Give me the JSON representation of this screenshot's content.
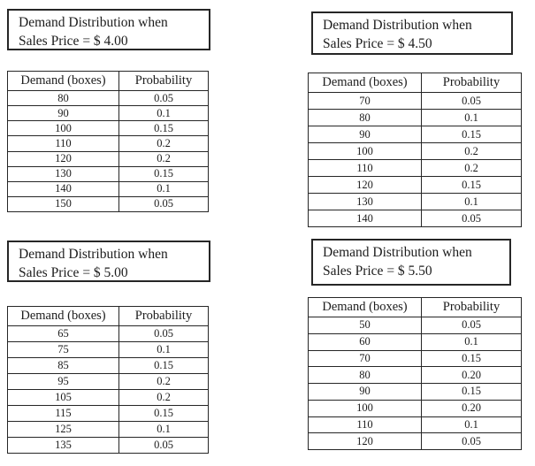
{
  "colors": {
    "background": "#ffffff",
    "text": "#1c1c1c",
    "border": "#262626"
  },
  "distributions": [
    {
      "title_line1": "Demand Distribution when",
      "title_line2": "Sales Price = $ 4.00",
      "columns": [
        "Demand (boxes)",
        "Probability"
      ],
      "rows": [
        [
          "80",
          "0.05"
        ],
        [
          "90",
          "0.1"
        ],
        [
          "100",
          "0.15"
        ],
        [
          "110",
          "0.2"
        ],
        [
          "120",
          "0.2"
        ],
        [
          "130",
          "0.15"
        ],
        [
          "140",
          "0.1"
        ],
        [
          "150",
          "0.05"
        ]
      ]
    },
    {
      "title_line1": "Demand Distribution when",
      "title_line2": "Sales Price = $ 4.50",
      "columns": [
        "Demand (boxes)",
        "Probability"
      ],
      "rows": [
        [
          "70",
          "0.05"
        ],
        [
          "80",
          "0.1"
        ],
        [
          "90",
          "0.15"
        ],
        [
          "100",
          "0.2"
        ],
        [
          "110",
          "0.2"
        ],
        [
          "120",
          "0.15"
        ],
        [
          "130",
          "0.1"
        ],
        [
          "140",
          "0.05"
        ]
      ]
    },
    {
      "title_line1": "Demand Distribution when",
      "title_line2": "Sales Price = $ 5.00",
      "columns": [
        "Demand (boxes)",
        "Probability"
      ],
      "rows": [
        [
          "65",
          "0.05"
        ],
        [
          "75",
          "0.1"
        ],
        [
          "85",
          "0.15"
        ],
        [
          "95",
          "0.2"
        ],
        [
          "105",
          "0.2"
        ],
        [
          "115",
          "0.15"
        ],
        [
          "125",
          "0.1"
        ],
        [
          "135",
          "0.05"
        ]
      ]
    },
    {
      "title_line1": "Demand Distribution when",
      "title_line2": "Sales Price = $ 5.50",
      "columns": [
        "Demand (boxes)",
        "Probability"
      ],
      "rows": [
        [
          "50",
          "0.05"
        ],
        [
          "60",
          "0.1"
        ],
        [
          "70",
          "0.15"
        ],
        [
          "80",
          "0.20"
        ],
        [
          "90",
          "0.15"
        ],
        [
          "100",
          "0.20"
        ],
        [
          "110",
          "0.1"
        ],
        [
          "120",
          "0.05"
        ]
      ]
    }
  ]
}
